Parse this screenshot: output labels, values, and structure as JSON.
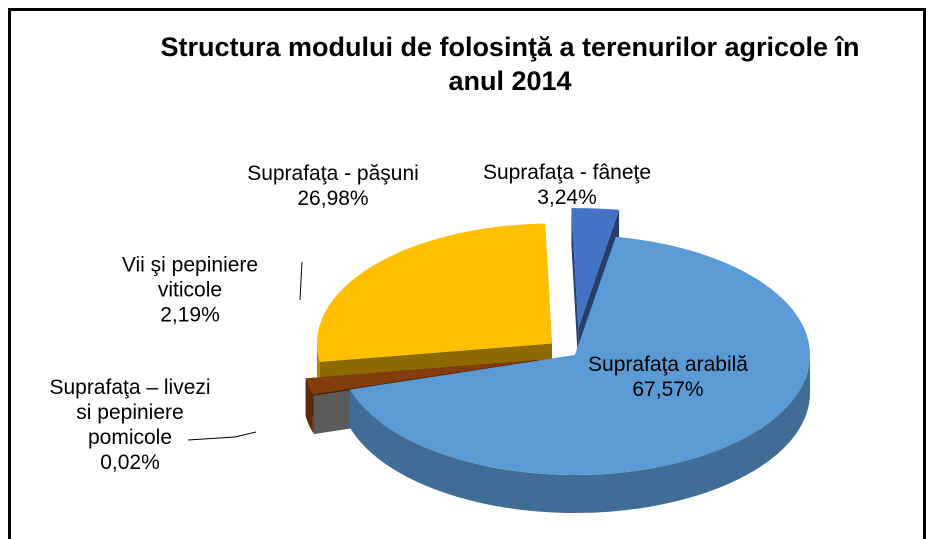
{
  "chart_data": {
    "type": "pie3d",
    "title": "Structura modului de folosinţă a terenurilor agricole în anul 2014",
    "categories": [
      "Suprafaţa arabilă",
      "Suprafaţa – livezi si pepiniere pomicole",
      "Vii şi pepiniere viticole",
      "Suprafaţa - păşuni",
      "Suprafaţa - fâneţe"
    ],
    "values": [
      67.57,
      0.02,
      2.19,
      26.98,
      3.24
    ],
    "value_labels": [
      "67,57%",
      "0,02%",
      "2,19%",
      "26,98%",
      "3,24%"
    ],
    "colors": [
      "#5b9bd5",
      "#a5a5a5",
      "#843c0c",
      "#ffc000",
      "#4472c4"
    ]
  }
}
